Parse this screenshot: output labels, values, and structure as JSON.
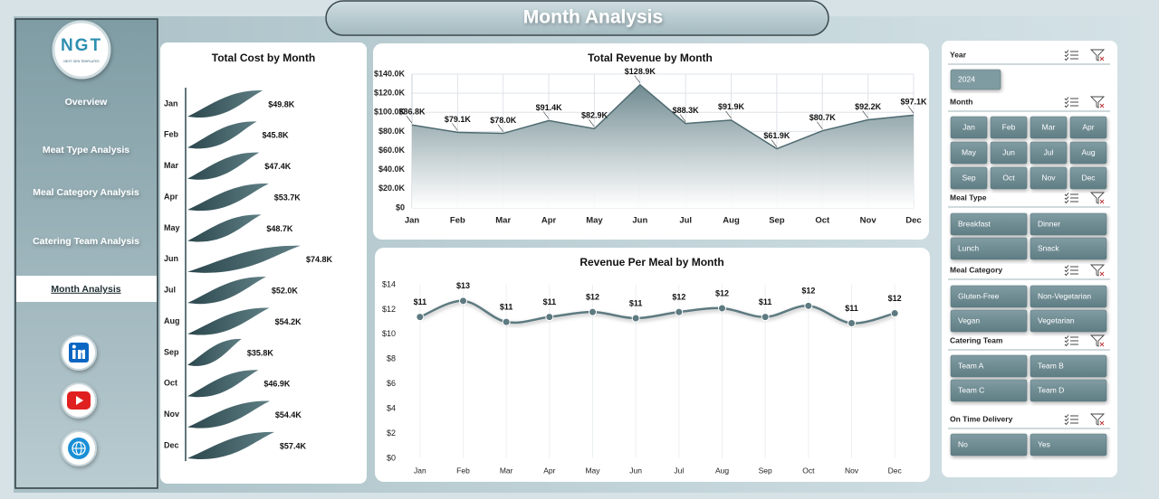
{
  "header": {
    "title": "Month Analysis"
  },
  "sidebar": {
    "logo": "NGT",
    "logo_tagline": "NEXT GEN TEMPLATES",
    "nav": [
      "Overview",
      "Meat Type Analysis",
      "Meal Category Analysis",
      "Catering Team Analysis",
      "Month Analysis"
    ]
  },
  "chart_data": [
    {
      "type": "bar",
      "orientation": "horizontal",
      "title": "Total Cost by Month",
      "categories": [
        "Jan",
        "Feb",
        "Mar",
        "Apr",
        "May",
        "Jun",
        "Jul",
        "Aug",
        "Sep",
        "Oct",
        "Nov",
        "Dec"
      ],
      "values": [
        49800,
        45800,
        47400,
        53700,
        48700,
        74800,
        52000,
        54200,
        35800,
        46900,
        54400,
        57400
      ],
      "value_labels": [
        "$49.8K",
        "$45.8K",
        "$47.4K",
        "$53.7K",
        "$48.7K",
        "$74.8K",
        "$52.0K",
        "$54.2K",
        "$35.8K",
        "$46.9K",
        "$54.4K",
        "$57.4K"
      ],
      "color": "#3d5c62"
    },
    {
      "type": "area",
      "title": "Total Revenue by Month",
      "categories": [
        "Jan",
        "Feb",
        "Mar",
        "Apr",
        "May",
        "Jun",
        "Jul",
        "Aug",
        "Sep",
        "Oct",
        "Nov",
        "Dec"
      ],
      "values": [
        86800,
        79100,
        78000,
        91400,
        82900,
        128900,
        88300,
        91900,
        61900,
        80700,
        92200,
        97100
      ],
      "value_labels": [
        "$86.8K",
        "$79.1K",
        "$78.0K",
        "$91.4K",
        "$82.9K",
        "$128.9K",
        "$88.3K",
        "$91.9K",
        "$61.9K",
        "$80.7K",
        "$92.2K",
        "$97.1K"
      ],
      "ylim": [
        0,
        140000
      ],
      "yticks": [
        {
          "value": 0,
          "label": "$0"
        },
        {
          "value": 20000,
          "label": "$20.0K"
        },
        {
          "value": 40000,
          "label": "$40.0K"
        },
        {
          "value": 60000,
          "label": "$60.0K"
        },
        {
          "value": 80000,
          "label": "$80.0K"
        },
        {
          "value": 100000,
          "label": "$100.0K"
        },
        {
          "value": 120000,
          "label": "$120.0K"
        },
        {
          "value": 140000,
          "label": "$140.0K"
        }
      ],
      "grid": true,
      "color": "#4e6a70"
    },
    {
      "type": "line",
      "title": "Revenue Per Meal by Month",
      "categories": [
        "Jan",
        "Feb",
        "Mar",
        "Apr",
        "May",
        "Jun",
        "Jul",
        "Aug",
        "Sep",
        "Oct",
        "Nov",
        "Dec"
      ],
      "values": [
        11.4,
        12.7,
        11.0,
        11.4,
        11.8,
        11.3,
        11.8,
        12.1,
        11.4,
        12.3,
        10.9,
        11.7
      ],
      "value_labels": [
        "$11",
        "$13",
        "$11",
        "$11",
        "$12",
        "$11",
        "$12",
        "$12",
        "$11",
        "$12",
        "$11",
        "$12"
      ],
      "ylim": [
        0,
        14
      ],
      "yticks": [
        {
          "value": 0,
          "label": "$0"
        },
        {
          "value": 2,
          "label": "$2"
        },
        {
          "value": 4,
          "label": "$4"
        },
        {
          "value": 6,
          "label": "$6"
        },
        {
          "value": 8,
          "label": "$8"
        },
        {
          "value": 10,
          "label": "$10"
        },
        {
          "value": 12,
          "label": "$12"
        },
        {
          "value": 14,
          "label": "$14"
        }
      ],
      "grid": false,
      "color": "#5d7a80"
    }
  ],
  "slicers": [
    {
      "title": "Year",
      "items": [
        "2024"
      ]
    },
    {
      "title": "Month",
      "items": [
        "Jan",
        "Feb",
        "Mar",
        "Apr",
        "May",
        "Jun",
        "Jul",
        "Aug",
        "Sep",
        "Oct",
        "Nov",
        "Dec"
      ]
    },
    {
      "title": "Meal Type",
      "items": [
        "Breakfast",
        "Dinner",
        "Lunch",
        "Snack"
      ]
    },
    {
      "title": "Meal Category",
      "items": [
        "Gluten-Free",
        "Non-Vegetarian",
        "Vegan",
        "Vegetarian"
      ]
    },
    {
      "title": "Catering Team",
      "items": [
        "Team A",
        "Team B",
        "Team C",
        "Team D"
      ]
    },
    {
      "title": "On Time Delivery",
      "items": [
        "No",
        "Yes"
      ]
    }
  ]
}
